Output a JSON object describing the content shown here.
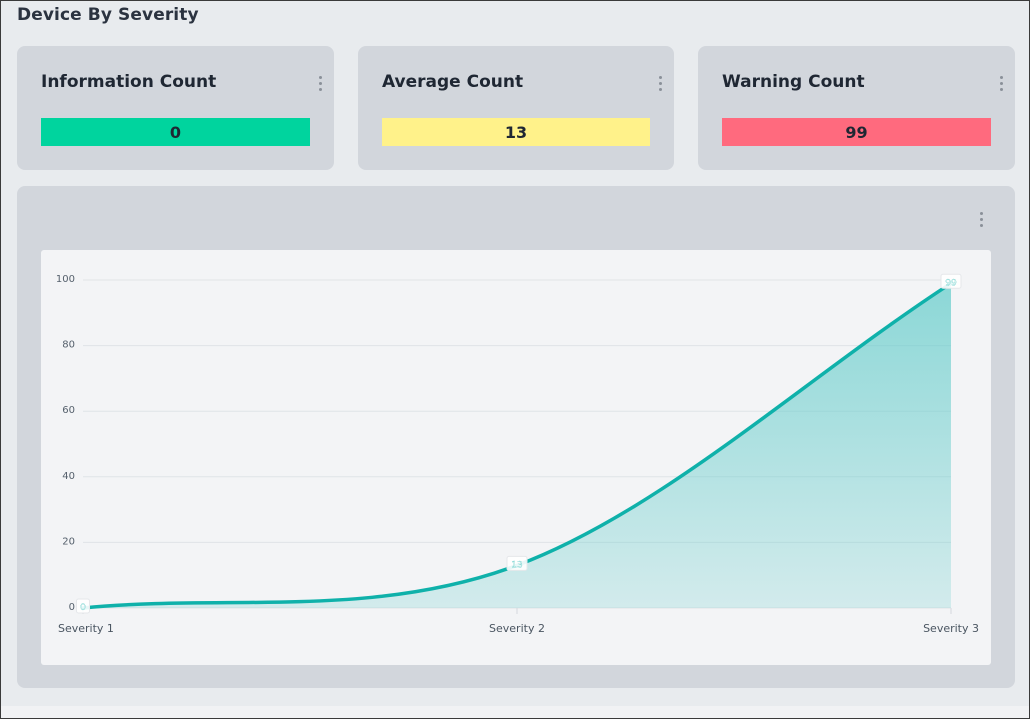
{
  "section": {
    "title": "Device By Severity"
  },
  "cards": [
    {
      "title": "Information Count",
      "value": "0",
      "color": "#00d49e"
    },
    {
      "title": "Average Count",
      "value": "13",
      "color": "#fff28a"
    },
    {
      "title": "Warning Count",
      "value": "99",
      "color": "#ff6a7e"
    }
  ],
  "chart_data": {
    "type": "area",
    "categories": [
      "Severity 1",
      "Severity 2",
      "Severity 3"
    ],
    "values": [
      0,
      13,
      99
    ],
    "data_labels": [
      "0",
      "13",
      "99"
    ],
    "ylim": [
      0,
      100
    ],
    "yticks": [
      "0",
      "20",
      "40",
      "60",
      "80",
      "100"
    ],
    "grid": true,
    "line_color": "#0fb1aa",
    "fill_color": "#5fcbc9"
  },
  "icons": {
    "menu": "kebab-vertical-icon"
  }
}
